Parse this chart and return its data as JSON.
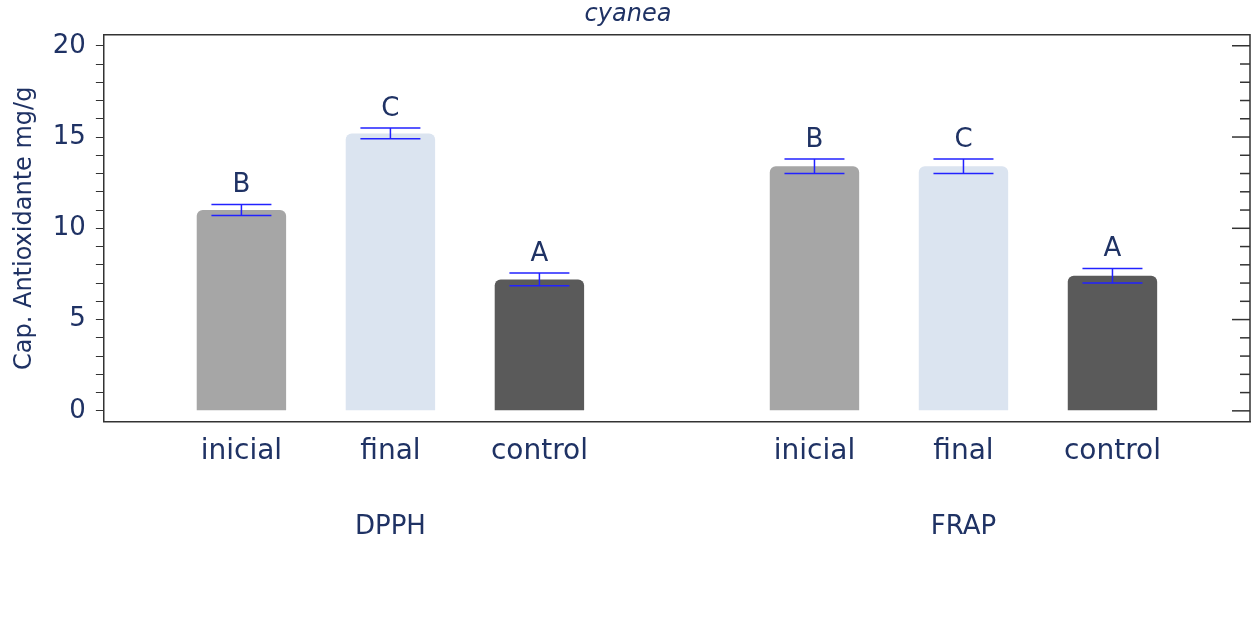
{
  "chart_data": {
    "type": "bar",
    "title": "cyanea",
    "ylabel": "Cap. Antioxidante mg/g",
    "categories": [
      "DPPH",
      "FRAP"
    ],
    "series": [
      {
        "name": "inicial",
        "color": "#a6a6a6",
        "values": [
          11.0,
          13.4
        ],
        "errors": [
          0.3,
          0.4
        ],
        "value_labels": [
          "B",
          "B"
        ]
      },
      {
        "name": "final",
        "color": "#dbe4f0",
        "values": [
          15.2,
          13.4
        ],
        "errors": [
          0.3,
          0.4
        ],
        "value_labels": [
          "C",
          "C"
        ]
      },
      {
        "name": "control",
        "color": "#5a5a5a",
        "values": [
          7.2,
          7.4
        ],
        "errors": [
          0.35,
          0.4
        ],
        "value_labels": [
          "A",
          "A"
        ]
      }
    ],
    "ylim": [
      -0.6,
      20.6
    ],
    "yticks": [
      0,
      {
        "value": 1,
        "label": null
      },
      {
        "value": 2,
        "label": null
      },
      {
        "value": 3,
        "label": null
      },
      {
        "value": 4,
        "label": null
      },
      5,
      {
        "value": 6,
        "label": null
      },
      {
        "value": 7,
        "label": null
      },
      {
        "value": 8,
        "label": null
      },
      {
        "value": 9,
        "label": null
      },
      10,
      {
        "value": 11,
        "label": null
      },
      {
        "value": 12,
        "label": null
      },
      {
        "value": 13,
        "label": null
      },
      {
        "value": 14,
        "label": null
      },
      15,
      {
        "value": 16,
        "label": null
      },
      {
        "value": 17,
        "label": null
      },
      {
        "value": 18,
        "label": null
      },
      {
        "value": 19,
        "label": null
      },
      20
    ],
    "grid": false,
    "legend": false
  }
}
